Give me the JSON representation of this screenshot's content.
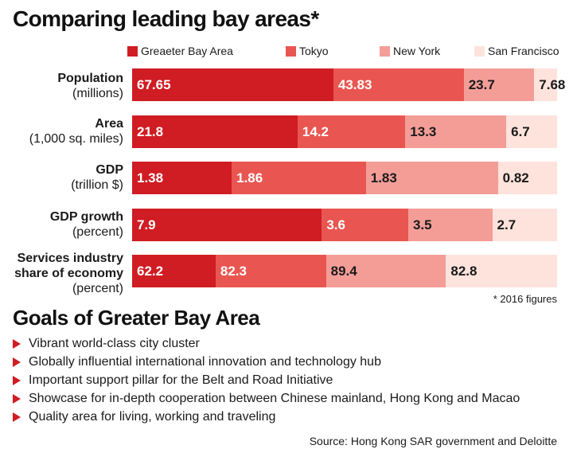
{
  "title": "Comparing leading bay areas*",
  "colors": {
    "Greaeter Bay Area": "#d01c23",
    "Tokyo": "#e95651",
    "New York": "#f49d97",
    "San Francisco": "#fde3dc"
  },
  "chart_data": {
    "type": "bar",
    "orientation": "horizontal",
    "stacked": true,
    "legend_position": "top",
    "categories": [
      {
        "bold": "Population",
        "sub": "(millions)"
      },
      {
        "bold": "Area",
        "sub": "(1,000 sq. miles)"
      },
      {
        "bold": "GDP",
        "sub": "(trillion $)"
      },
      {
        "bold": "GDP growth",
        "sub": "(percent)"
      },
      {
        "bold": "Services industry share of economy",
        "sub": "(percent)"
      }
    ],
    "series": [
      {
        "name": "Greaeter Bay Area",
        "values": [
          67.65,
          21.8,
          1.38,
          7.9,
          62.2
        ],
        "labels": [
          "67.65",
          "21.8",
          "1.38",
          "7.9",
          "62.2"
        ]
      },
      {
        "name": "Tokyo",
        "values": [
          43.83,
          14.2,
          1.86,
          3.6,
          82.3
        ],
        "labels": [
          "43.83",
          "14.2",
          "1.86",
          "3.6",
          "82.3"
        ]
      },
      {
        "name": "New York",
        "values": [
          23.7,
          13.3,
          1.83,
          3.5,
          89.4
        ],
        "labels": [
          "23.7",
          "13.3",
          "1.83",
          "3.5",
          "89.4"
        ]
      },
      {
        "name": "San Francisco",
        "values": [
          7.68,
          6.7,
          0.82,
          2.7,
          82.8
        ],
        "labels": [
          "7.68",
          "6.7",
          "0.82",
          "2.7",
          "82.8"
        ]
      }
    ]
  },
  "footnote": "* 2016 figures",
  "goals": {
    "title": "Goals of Greater Bay Area",
    "items": [
      "Vibrant world-class city cluster",
      "Globally influential international innovation and technology hub",
      "Important support pillar for the Belt and Road Initiative",
      "Showcase for in-depth cooperation between Chinese mainland, Hong Kong and Macao",
      "Quality area for living, working and traveling"
    ]
  },
  "source": "Source: Hong Kong SAR government and Deloitte"
}
